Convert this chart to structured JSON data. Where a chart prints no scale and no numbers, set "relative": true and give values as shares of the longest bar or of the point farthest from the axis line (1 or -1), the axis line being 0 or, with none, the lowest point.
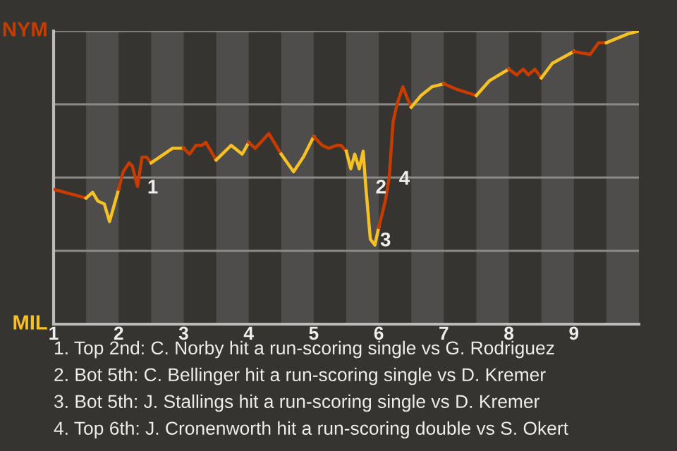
{
  "chart_data": {
    "type": "line",
    "relative": true,
    "tick_labels": "x",
    "xlim": [
      1,
      10
    ],
    "xticks": [
      1,
      2,
      3,
      4,
      5,
      6,
      7,
      8,
      9
    ],
    "grid": "y",
    "legend": false,
    "marker": "none",
    "line_style": "solid",
    "series": [
      {
        "color": "#c83c00",
        "x": [
          1,
          1.5
        ],
        "values": [
          0.46,
          0.43
        ]
      },
      {
        "color": "#f6c125",
        "x": [
          1.5,
          1.6,
          1.68,
          1.78,
          1.86,
          2
        ],
        "values": [
          0.43,
          0.45,
          0.42,
          0.41,
          0.35,
          0.46
        ]
      },
      {
        "color": "#c83c00",
        "x": [
          2,
          2.07,
          2.16,
          2.21,
          2.29,
          2.36,
          2.43,
          2.5
        ],
        "values": [
          0.46,
          0.52,
          0.55,
          0.54,
          0.47,
          0.57,
          0.57,
          0.55
        ]
      },
      {
        "color": "#f6c125",
        "x": [
          2.5,
          2.83,
          3
        ],
        "values": [
          0.55,
          0.6,
          0.6
        ]
      },
      {
        "color": "#c83c00",
        "x": [
          3,
          3.09,
          3.19,
          3.28,
          3.34,
          3.5
        ],
        "values": [
          0.6,
          0.58,
          0.61,
          0.61,
          0.62,
          0.56
        ]
      },
      {
        "color": "#f6c125",
        "x": [
          3.5,
          3.73,
          3.9,
          4
        ],
        "values": [
          0.56,
          0.61,
          0.58,
          0.62
        ]
      },
      {
        "color": "#c83c00",
        "x": [
          4,
          4.1,
          4.31,
          4.5
        ],
        "values": [
          0.62,
          0.6,
          0.65,
          0.58
        ]
      },
      {
        "color": "#f6c125",
        "x": [
          4.5,
          4.69,
          4.84,
          5
        ],
        "values": [
          0.58,
          0.52,
          0.57,
          0.64
        ]
      },
      {
        "color": "#c83c00",
        "x": [
          5,
          5.13,
          5.23,
          5.35,
          5.42,
          5.5
        ],
        "values": [
          0.64,
          0.61,
          0.6,
          0.61,
          0.61,
          0.59
        ]
      },
      {
        "color": "#f6c125",
        "x": [
          5.5,
          5.57,
          5.63,
          5.7,
          5.76,
          5.8,
          5.87,
          5.94,
          6
        ],
        "values": [
          0.59,
          0.53,
          0.58,
          0.53,
          0.59,
          0.47,
          0.29,
          0.27,
          0.33
        ]
      },
      {
        "color": "#c83c00",
        "x": [
          6,
          6.1,
          6.16,
          6.22,
          6.28,
          6.37,
          6.44,
          6.5
        ],
        "values": [
          0.33,
          0.42,
          0.5,
          0.69,
          0.75,
          0.81,
          0.77,
          0.74
        ]
      },
      {
        "color": "#f6c125",
        "x": [
          6.5,
          6.65,
          6.82,
          7
        ],
        "values": [
          0.74,
          0.78,
          0.81,
          0.82
        ]
      },
      {
        "color": "#c83c00",
        "x": [
          7,
          7.21,
          7.5
        ],
        "values": [
          0.82,
          0.8,
          0.78
        ]
      },
      {
        "color": "#f6c125",
        "x": [
          7.5,
          7.7,
          8
        ],
        "values": [
          0.78,
          0.83,
          0.87
        ]
      },
      {
        "color": "#c83c00",
        "x": [
          8,
          8.12,
          8.22,
          8.3,
          8.4,
          8.5
        ],
        "values": [
          0.87,
          0.85,
          0.87,
          0.85,
          0.87,
          0.84
        ]
      },
      {
        "color": "#f6c125",
        "x": [
          8.5,
          8.67,
          9
        ],
        "values": [
          0.84,
          0.89,
          0.93
        ]
      },
      {
        "color": "#c83c00",
        "x": [
          9,
          9.25,
          9.38,
          9.5
        ],
        "values": [
          0.93,
          0.92,
          0.96,
          0.96
        ]
      },
      {
        "color": "#f6c125",
        "x": [
          9.5,
          9.83,
          10
        ],
        "values": [
          0.96,
          0.99,
          1
        ]
      }
    ],
    "bands": [
      {
        "axis": "x",
        "from": 1.5,
        "to": 2,
        "color": "#4e4d4b"
      },
      {
        "axis": "x",
        "from": 2.5,
        "to": 3,
        "color": "#4e4d4b"
      },
      {
        "axis": "x",
        "from": 3.5,
        "to": 4,
        "color": "#4e4d4b"
      },
      {
        "axis": "x",
        "from": 4.5,
        "to": 5,
        "color": "#4e4d4b"
      },
      {
        "axis": "x",
        "from": 5.5,
        "to": 6,
        "color": "#4e4d4b"
      },
      {
        "axis": "x",
        "from": 6.5,
        "to": 7,
        "color": "#4e4d4b"
      },
      {
        "axis": "x",
        "from": 7.5,
        "to": 8,
        "color": "#4e4d4b"
      },
      {
        "axis": "x",
        "from": 8.5,
        "to": 9,
        "color": "#4e4d4b"
      },
      {
        "axis": "x",
        "from": 9.5,
        "to": 10,
        "color": "#4e4d4b"
      }
    ],
    "annotations": [
      "NYM",
      "MIL",
      {
        "text": "1",
        "x": 2.29,
        "y": 0.47
      },
      {
        "text": "2",
        "x": 5.8,
        "y": 0.47
      },
      {
        "text": "3",
        "x": 5.87,
        "y": 0.29
      },
      {
        "text": "4",
        "x": 6.16,
        "y": 0.5
      },
      "1. Top 2nd: C. Norby hit a run-scoring single vs G. Rodriguez",
      "2. Bot 5th: C. Bellinger hit a run-scoring single vs D. Kremer",
      "3. Bot 5th: J. Stallings hit a run-scoring single vs D. Kremer",
      "4. Top 6th: J. Cronenworth hit a run-scoring double vs S. Okert"
    ]
  }
}
